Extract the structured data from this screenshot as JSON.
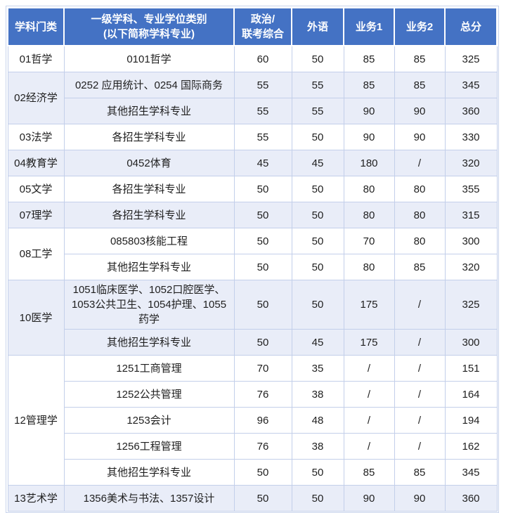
{
  "accent_colors": {
    "header_bg": "#4472C4",
    "header_text": "#FFFFFF",
    "shaded_row_bg": "#E9EDF8",
    "grid_line": "#C3CFEA",
    "body_text": "#1F1F1F"
  },
  "table": {
    "columns": [
      {
        "lines": [
          "学科门类"
        ]
      },
      {
        "lines": [
          "一级学科、专业学位类别",
          "(以下简称学科专业)"
        ]
      },
      {
        "lines": [
          "政治/",
          "联考综合"
        ]
      },
      {
        "lines": [
          "外语"
        ]
      },
      {
        "lines": [
          "业务1"
        ]
      },
      {
        "lines": [
          "业务2"
        ]
      },
      {
        "lines": [
          "总分"
        ]
      }
    ],
    "groups": [
      {
        "category": "01哲学",
        "shaded": false,
        "rows": [
          {
            "major": "0101哲学",
            "values": [
              "60",
              "50",
              "85",
              "85",
              "325"
            ]
          }
        ]
      },
      {
        "category": "02经济学",
        "shaded": true,
        "rows": [
          {
            "major": "0252 应用统计、0254 国际商务",
            "values": [
              "55",
              "55",
              "85",
              "85",
              "345"
            ]
          },
          {
            "major": "其他招生学科专业",
            "values": [
              "55",
              "55",
              "90",
              "90",
              "360"
            ]
          }
        ]
      },
      {
        "category": "03法学",
        "shaded": false,
        "rows": [
          {
            "major": "各招生学科专业",
            "values": [
              "55",
              "50",
              "90",
              "90",
              "330"
            ]
          }
        ]
      },
      {
        "category": "04教育学",
        "shaded": true,
        "rows": [
          {
            "major": "0452体育",
            "values": [
              "45",
              "45",
              "180",
              "/",
              "320"
            ]
          }
        ]
      },
      {
        "category": "05文学",
        "shaded": false,
        "rows": [
          {
            "major": "各招生学科专业",
            "values": [
              "50",
              "50",
              "80",
              "80",
              "355"
            ]
          }
        ]
      },
      {
        "category": "07理学",
        "shaded": true,
        "rows": [
          {
            "major": "各招生学科专业",
            "values": [
              "50",
              "50",
              "80",
              "80",
              "315"
            ]
          }
        ]
      },
      {
        "category": "08工学",
        "shaded": false,
        "rows": [
          {
            "major": "085803核能工程",
            "values": [
              "50",
              "50",
              "70",
              "80",
              "300"
            ]
          },
          {
            "major": "其他招生学科专业",
            "values": [
              "50",
              "50",
              "80",
              "85",
              "320"
            ]
          }
        ]
      },
      {
        "category": "10医学",
        "shaded": true,
        "rows": [
          {
            "major": "1051临床医学、1052口腔医学、1053公共卫生、1054护理、1055药学",
            "values": [
              "50",
              "50",
              "175",
              "/",
              "325"
            ]
          },
          {
            "major": "其他招生学科专业",
            "values": [
              "50",
              "45",
              "175",
              "/",
              "300"
            ]
          }
        ]
      },
      {
        "category": "12管理学",
        "shaded": false,
        "rows": [
          {
            "major": "1251工商管理",
            "values": [
              "70",
              "35",
              "/",
              "/",
              "151"
            ]
          },
          {
            "major": "1252公共管理",
            "values": [
              "76",
              "38",
              "/",
              "/",
              "164"
            ]
          },
          {
            "major": "1253会计",
            "values": [
              "96",
              "48",
              "/",
              "/",
              "194"
            ]
          },
          {
            "major": "1256工程管理",
            "values": [
              "76",
              "38",
              "/",
              "/",
              "162"
            ]
          },
          {
            "major": "其他招生学科专业",
            "values": [
              "50",
              "50",
              "85",
              "85",
              "345"
            ]
          }
        ]
      },
      {
        "category": "13艺术学",
        "shaded": true,
        "rows": [
          {
            "major": "1356美术与书法、1357设计",
            "values": [
              "50",
              "50",
              "90",
              "90",
              "360"
            ]
          }
        ]
      }
    ]
  },
  "chart_data": {
    "type": "table",
    "title": "",
    "columns": [
      "学科门类",
      "一级学科、专业学位类别(以下简称学科专业)",
      "政治/联考综合",
      "外语",
      "业务1",
      "业务2",
      "总分"
    ],
    "rows": [
      [
        "01哲学",
        "0101哲学",
        "60",
        "50",
        "85",
        "85",
        "325"
      ],
      [
        "02经济学",
        "0252 应用统计、0254 国际商务",
        "55",
        "55",
        "85",
        "85",
        "345"
      ],
      [
        "02经济学",
        "其他招生学科专业",
        "55",
        "55",
        "90",
        "90",
        "360"
      ],
      [
        "03法学",
        "各招生学科专业",
        "55",
        "50",
        "90",
        "90",
        "330"
      ],
      [
        "04教育学",
        "0452体育",
        "45",
        "45",
        "180",
        "/",
        "320"
      ],
      [
        "05文学",
        "各招生学科专业",
        "50",
        "50",
        "80",
        "80",
        "355"
      ],
      [
        "07理学",
        "各招生学科专业",
        "50",
        "50",
        "80",
        "80",
        "315"
      ],
      [
        "08工学",
        "085803核能工程",
        "50",
        "50",
        "70",
        "80",
        "300"
      ],
      [
        "08工学",
        "其他招生学科专业",
        "50",
        "50",
        "80",
        "85",
        "320"
      ],
      [
        "10医学",
        "1051临床医学、1052口腔医学、1053公共卫生、1054护理、1055药学",
        "50",
        "50",
        "175",
        "/",
        "325"
      ],
      [
        "10医学",
        "其他招生学科专业",
        "50",
        "45",
        "175",
        "/",
        "300"
      ],
      [
        "12管理学",
        "1251工商管理",
        "70",
        "35",
        "/",
        "/",
        "151"
      ],
      [
        "12管理学",
        "1252公共管理",
        "76",
        "38",
        "/",
        "/",
        "164"
      ],
      [
        "12管理学",
        "1253会计",
        "96",
        "48",
        "/",
        "/",
        "194"
      ],
      [
        "12管理学",
        "1256工程管理",
        "76",
        "38",
        "/",
        "/",
        "162"
      ],
      [
        "12管理学",
        "其他招生学科专业",
        "50",
        "50",
        "85",
        "85",
        "345"
      ],
      [
        "13艺术学",
        "1356美术与书法、1357设计",
        "50",
        "50",
        "90",
        "90",
        "360"
      ]
    ]
  }
}
